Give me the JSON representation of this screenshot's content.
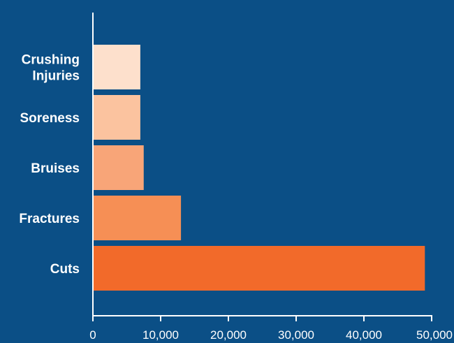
{
  "chart_data": {
    "type": "bar",
    "orientation": "horizontal",
    "categories": [
      "Crushing Injuries",
      "Soreness",
      "Bruises",
      "Fractures",
      "Cuts"
    ],
    "category_lines": [
      [
        "Crushing",
        "Injuries"
      ],
      [
        "Soreness"
      ],
      [
        "Bruises"
      ],
      [
        "Fractures"
      ],
      [
        "Cuts"
      ]
    ],
    "values": [
      7000,
      7000,
      7500,
      13000,
      49000
    ],
    "bar_colors": [
      "#fde0cc",
      "#fbc39f",
      "#f8a578",
      "#f68f55",
      "#f26a2a"
    ],
    "x_ticks": [
      0,
      10000,
      20000,
      30000,
      40000,
      50000
    ],
    "x_tick_labels": [
      "0",
      "10,000",
      "20,000",
      "30,000",
      "40,000",
      "50,000"
    ],
    "xlim": [
      0,
      50000
    ],
    "title": "",
    "xlabel": "",
    "ylabel": "",
    "grid": false,
    "legend": "none",
    "colors": {
      "background": "#0b4f86",
      "axis": "#ffffff",
      "text": "#ffffff"
    }
  }
}
